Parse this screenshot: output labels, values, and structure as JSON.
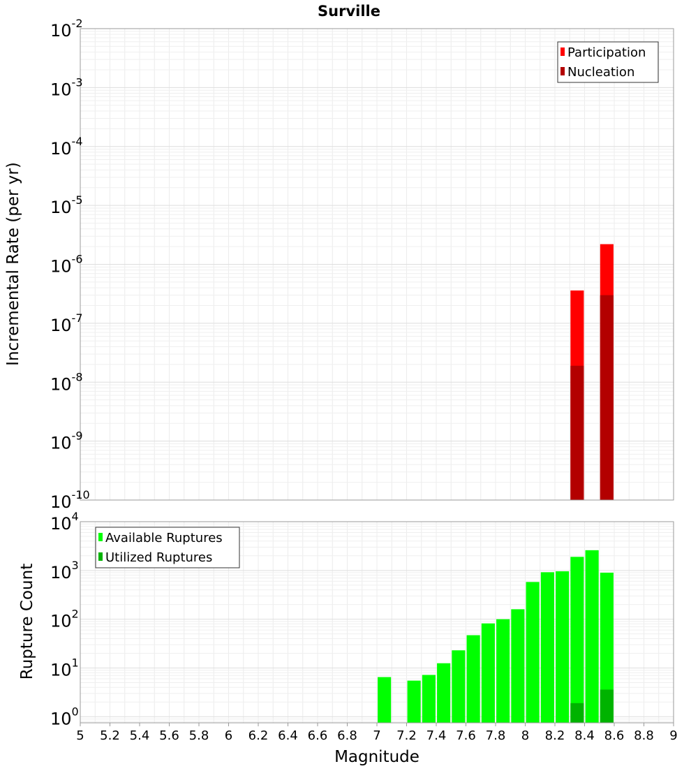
{
  "chart_data": [
    {
      "type": "bar",
      "title": "Surville",
      "ylabel": "Incremental Rate (per yr)",
      "xlabel": "",
      "xlim": [
        5,
        9
      ],
      "ylim": [
        1e-10,
        0.01
      ],
      "yscale": "log",
      "y_tick_exponents": [
        "-10",
        "-9",
        "-8",
        "-7",
        "-6",
        "-5",
        "-4",
        "-3",
        "-2"
      ],
      "bar_width": 0.09,
      "grid": true,
      "legend_position": "top-right",
      "series": [
        {
          "name": "Participation",
          "color": "#ff0000",
          "x": [
            8.35,
            8.55
          ],
          "values": [
            3.6e-07,
            2.2e-06
          ]
        },
        {
          "name": "Nucleation",
          "color": "#b30000",
          "x": [
            8.35,
            8.55
          ],
          "values": [
            1.9e-08,
            3e-07
          ]
        }
      ]
    },
    {
      "type": "bar",
      "title": "",
      "ylabel": "Rupture Count",
      "xlabel": "Magnitude",
      "xlim": [
        5,
        9
      ],
      "ylim": [
        0.75,
        10000
      ],
      "yscale": "log",
      "y_tick_exponents": [
        "0",
        "1",
        "2",
        "3",
        "4"
      ],
      "x_ticks": [
        "5",
        "5.2",
        "5.4",
        "5.6",
        "5.8",
        "6",
        "6.2",
        "6.4",
        "6.6",
        "6.8",
        "7",
        "7.2",
        "7.4",
        "7.6",
        "7.8",
        "8",
        "8.2",
        "8.4",
        "8.6",
        "8.8",
        "9"
      ],
      "bar_width": 0.09,
      "grid": true,
      "legend_position": "top-left",
      "series": [
        {
          "name": "Available Ruptures",
          "color": "#00ff00",
          "x": [
            7.05,
            7.25,
            7.35,
            7.45,
            7.55,
            7.65,
            7.75,
            7.85,
            7.95,
            8.05,
            8.15,
            8.25,
            8.35,
            8.45,
            8.55
          ],
          "values": [
            6.5,
            5.5,
            7.2,
            12.5,
            23,
            47,
            82,
            100,
            160,
            580,
            920,
            960,
            1900,
            2600,
            900
          ]
        },
        {
          "name": "Utilized Ruptures",
          "color": "#00b300",
          "x": [
            8.35,
            8.55
          ],
          "values": [
            1.9,
            3.6
          ]
        }
      ]
    }
  ]
}
